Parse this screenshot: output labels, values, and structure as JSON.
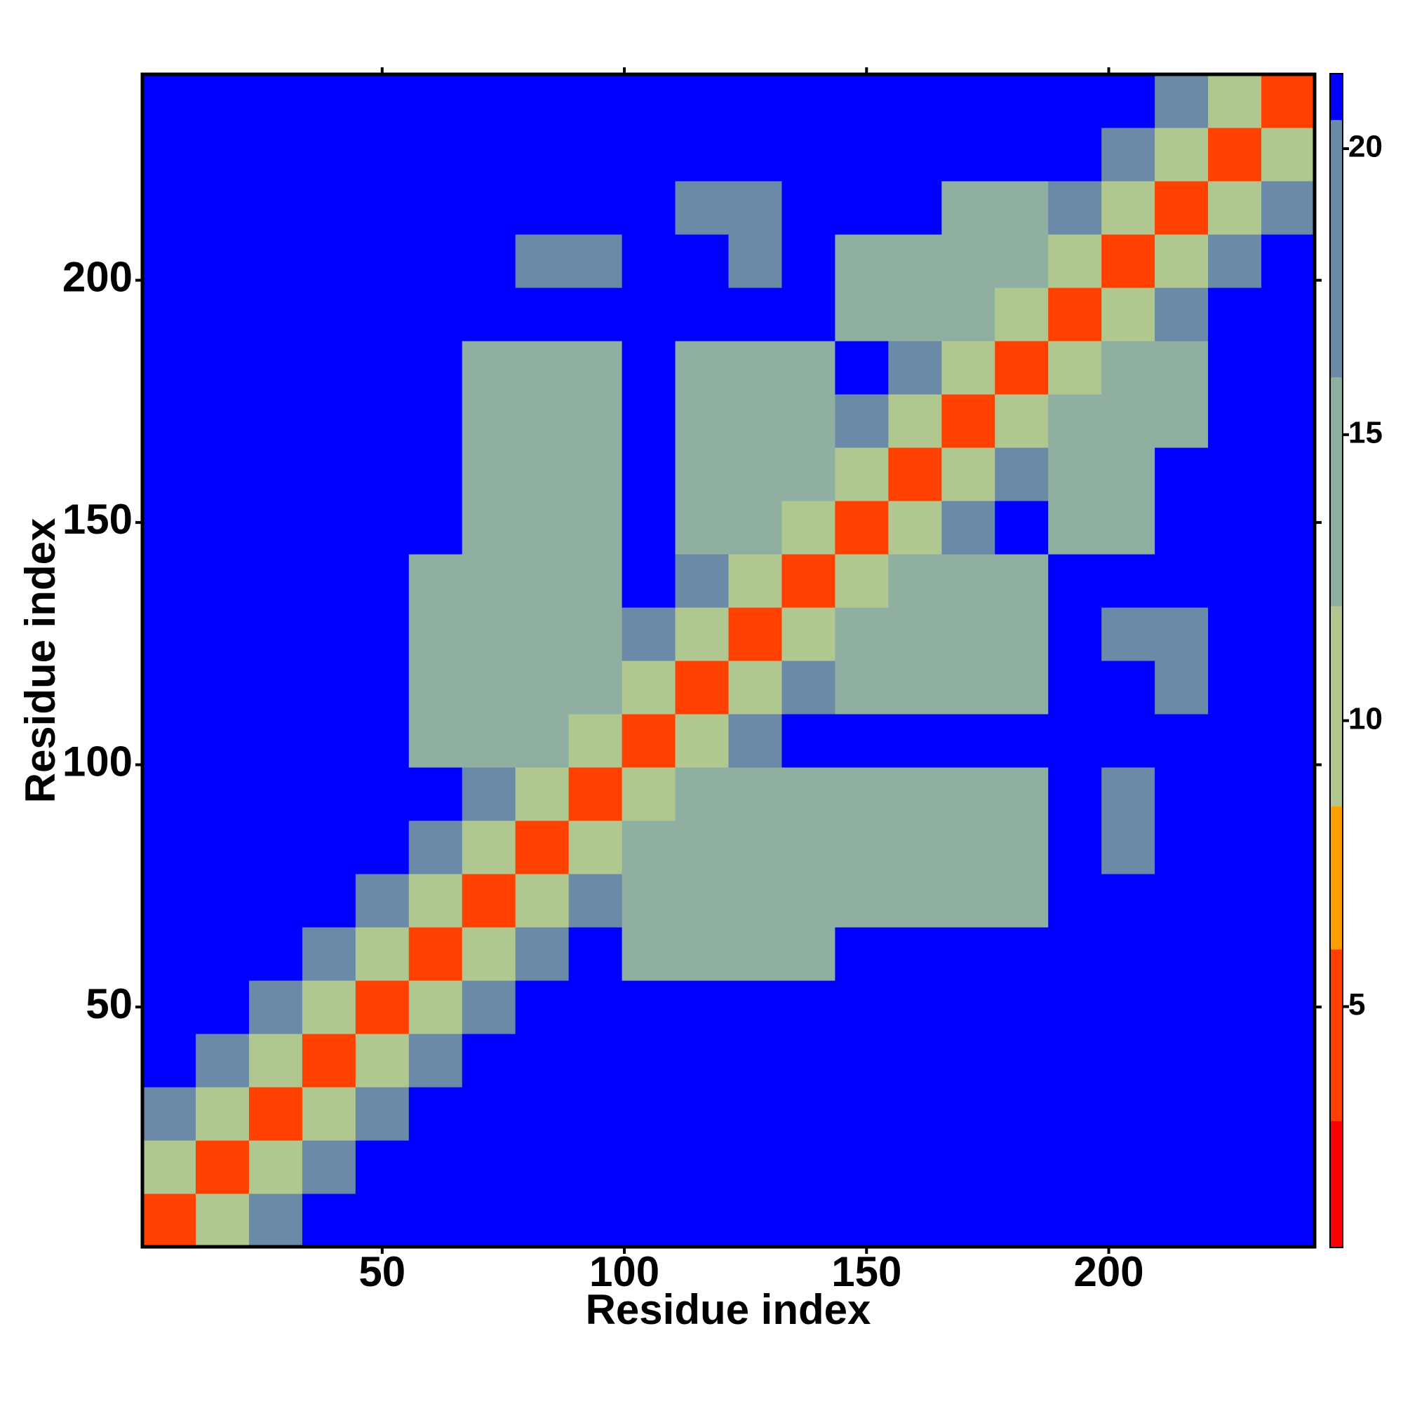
{
  "chart_data": {
    "type": "heatmap",
    "x_label": "Residue index",
    "y_label": "Residue index",
    "x_bins": [
      0.5,
      11.5,
      22.5,
      33.5,
      44.5,
      55.5,
      66.5,
      77.5,
      88.5,
      99.5,
      110.5,
      121.5,
      132.5,
      143.5,
      154.5,
      165.5,
      176.5,
      187.5,
      198.5,
      209.5,
      220.5,
      231.5,
      242.5
    ],
    "y_bins": [
      0.5,
      11.5,
      22.5,
      33.5,
      44.5,
      55.5,
      66.5,
      77.5,
      88.5,
      99.5,
      110.5,
      121.5,
      132.5,
      143.5,
      154.5,
      165.5,
      176.5,
      187.5,
      198.5,
      209.5,
      220.5,
      231.5,
      242.5
    ],
    "values": [
      [
        6,
        12,
        17,
        21,
        21,
        21,
        21,
        21,
        21,
        21,
        21,
        21,
        21,
        21,
        21,
        21,
        21,
        21,
        21,
        21,
        21,
        21
      ],
      [
        12,
        6,
        12,
        17,
        21,
        21,
        21,
        21,
        21,
        21,
        21,
        21,
        21,
        21,
        21,
        21,
        21,
        21,
        21,
        21,
        21,
        21
      ],
      [
        17,
        12,
        6,
        12,
        17,
        21,
        21,
        21,
        21,
        21,
        21,
        21,
        21,
        21,
        21,
        21,
        21,
        21,
        21,
        21,
        21,
        21
      ],
      [
        21,
        17,
        12,
        6,
        12,
        17,
        21,
        21,
        21,
        21,
        21,
        21,
        21,
        21,
        21,
        21,
        21,
        21,
        21,
        21,
        21,
        21
      ],
      [
        21,
        21,
        17,
        12,
        6,
        12,
        17,
        21,
        21,
        21,
        21,
        21,
        21,
        21,
        21,
        21,
        21,
        21,
        21,
        21,
        21,
        21
      ],
      [
        21,
        21,
        21,
        17,
        12,
        6,
        12,
        17,
        21,
        13,
        13,
        13,
        13,
        21,
        21,
        21,
        21,
        21,
        21,
        21,
        21,
        21
      ],
      [
        21,
        21,
        21,
        21,
        17,
        12,
        6,
        12,
        17,
        13,
        13,
        13,
        13,
        14,
        14,
        14,
        14,
        21,
        21,
        21,
        21,
        21
      ],
      [
        21,
        21,
        21,
        21,
        21,
        17,
        12,
        6,
        12,
        13,
        13,
        13,
        13,
        14,
        14,
        14,
        14,
        21,
        19,
        21,
        21,
        21
      ],
      [
        21,
        21,
        21,
        21,
        21,
        21,
        17,
        12,
        6,
        12,
        13,
        13,
        13,
        14,
        14,
        14,
        14,
        21,
        19,
        21,
        21,
        21
      ],
      [
        21,
        21,
        21,
        21,
        21,
        13,
        13,
        13,
        12,
        6,
        12,
        17,
        21,
        21,
        21,
        21,
        21,
        21,
        21,
        21,
        21,
        21
      ],
      [
        21,
        21,
        21,
        21,
        21,
        13,
        13,
        13,
        13,
        12,
        6,
        12,
        17,
        14,
        14,
        14,
        14,
        21,
        21,
        19,
        21,
        21
      ],
      [
        21,
        21,
        21,
        21,
        21,
        13,
        13,
        13,
        13,
        17,
        12,
        6,
        12,
        14,
        14,
        14,
        14,
        21,
        18,
        19,
        21,
        21
      ],
      [
        21,
        21,
        21,
        21,
        21,
        13,
        13,
        13,
        13,
        21,
        17,
        12,
        6,
        12,
        14,
        14,
        14,
        21,
        21,
        21,
        21,
        21
      ],
      [
        21,
        21,
        21,
        21,
        21,
        21,
        14,
        14,
        14,
        21,
        14,
        14,
        12,
        6,
        12,
        17,
        21,
        14,
        14,
        21,
        21,
        21
      ],
      [
        21,
        21,
        21,
        21,
        21,
        21,
        14,
        14,
        14,
        21,
        14,
        14,
        14,
        12,
        6,
        12,
        17,
        14,
        14,
        21,
        21,
        21
      ],
      [
        21,
        21,
        21,
        21,
        21,
        21,
        14,
        14,
        14,
        21,
        14,
        14,
        14,
        17,
        12,
        6,
        12,
        14,
        14,
        16,
        21,
        21
      ],
      [
        21,
        21,
        21,
        21,
        21,
        21,
        14,
        14,
        14,
        21,
        14,
        14,
        14,
        21,
        17,
        12,
        6,
        12,
        14,
        16,
        21,
        21
      ],
      [
        21,
        21,
        21,
        21,
        21,
        21,
        21,
        21,
        21,
        21,
        21,
        21,
        21,
        14,
        14,
        14,
        12,
        6,
        12,
        17,
        21,
        21
      ],
      [
        21,
        21,
        21,
        21,
        21,
        21,
        21,
        19,
        19,
        21,
        21,
        18,
        21,
        14,
        14,
        14,
        14,
        12,
        6,
        12,
        17,
        21
      ],
      [
        21,
        21,
        21,
        21,
        21,
        21,
        21,
        21,
        21,
        21,
        19,
        19,
        21,
        21,
        21,
        16,
        16,
        17,
        12,
        6,
        12,
        17
      ],
      [
        21,
        21,
        21,
        21,
        21,
        21,
        21,
        21,
        21,
        21,
        21,
        21,
        21,
        21,
        21,
        21,
        21,
        21,
        17,
        12,
        6,
        12
      ],
      [
        21,
        21,
        21,
        21,
        21,
        21,
        21,
        21,
        21,
        21,
        21,
        21,
        21,
        21,
        21,
        21,
        21,
        21,
        21,
        17,
        12,
        6
      ]
    ],
    "xlim": [
      0.5,
      242.5
    ],
    "ylim": [
      0.5,
      242.5
    ],
    "xticks": [
      50,
      100,
      150,
      200
    ],
    "yticks": [
      50,
      100,
      150,
      200
    ],
    "clim": [
      0.8,
      21.3
    ],
    "cticks": [
      5,
      10,
      15,
      20
    ],
    "colorscale": [
      {
        "to": 3,
        "color": "#ff0000"
      },
      {
        "to": 6,
        "color": "#ff4000"
      },
      {
        "to": 8.5,
        "color": "#ffa000"
      },
      {
        "to": 12,
        "color": "#b0c890"
      },
      {
        "to": 16,
        "color": "#8fb0a0"
      },
      {
        "to": 20.5,
        "color": "#6a8aa8"
      },
      {
        "to": 21.3,
        "color": "#0000ff"
      }
    ]
  }
}
